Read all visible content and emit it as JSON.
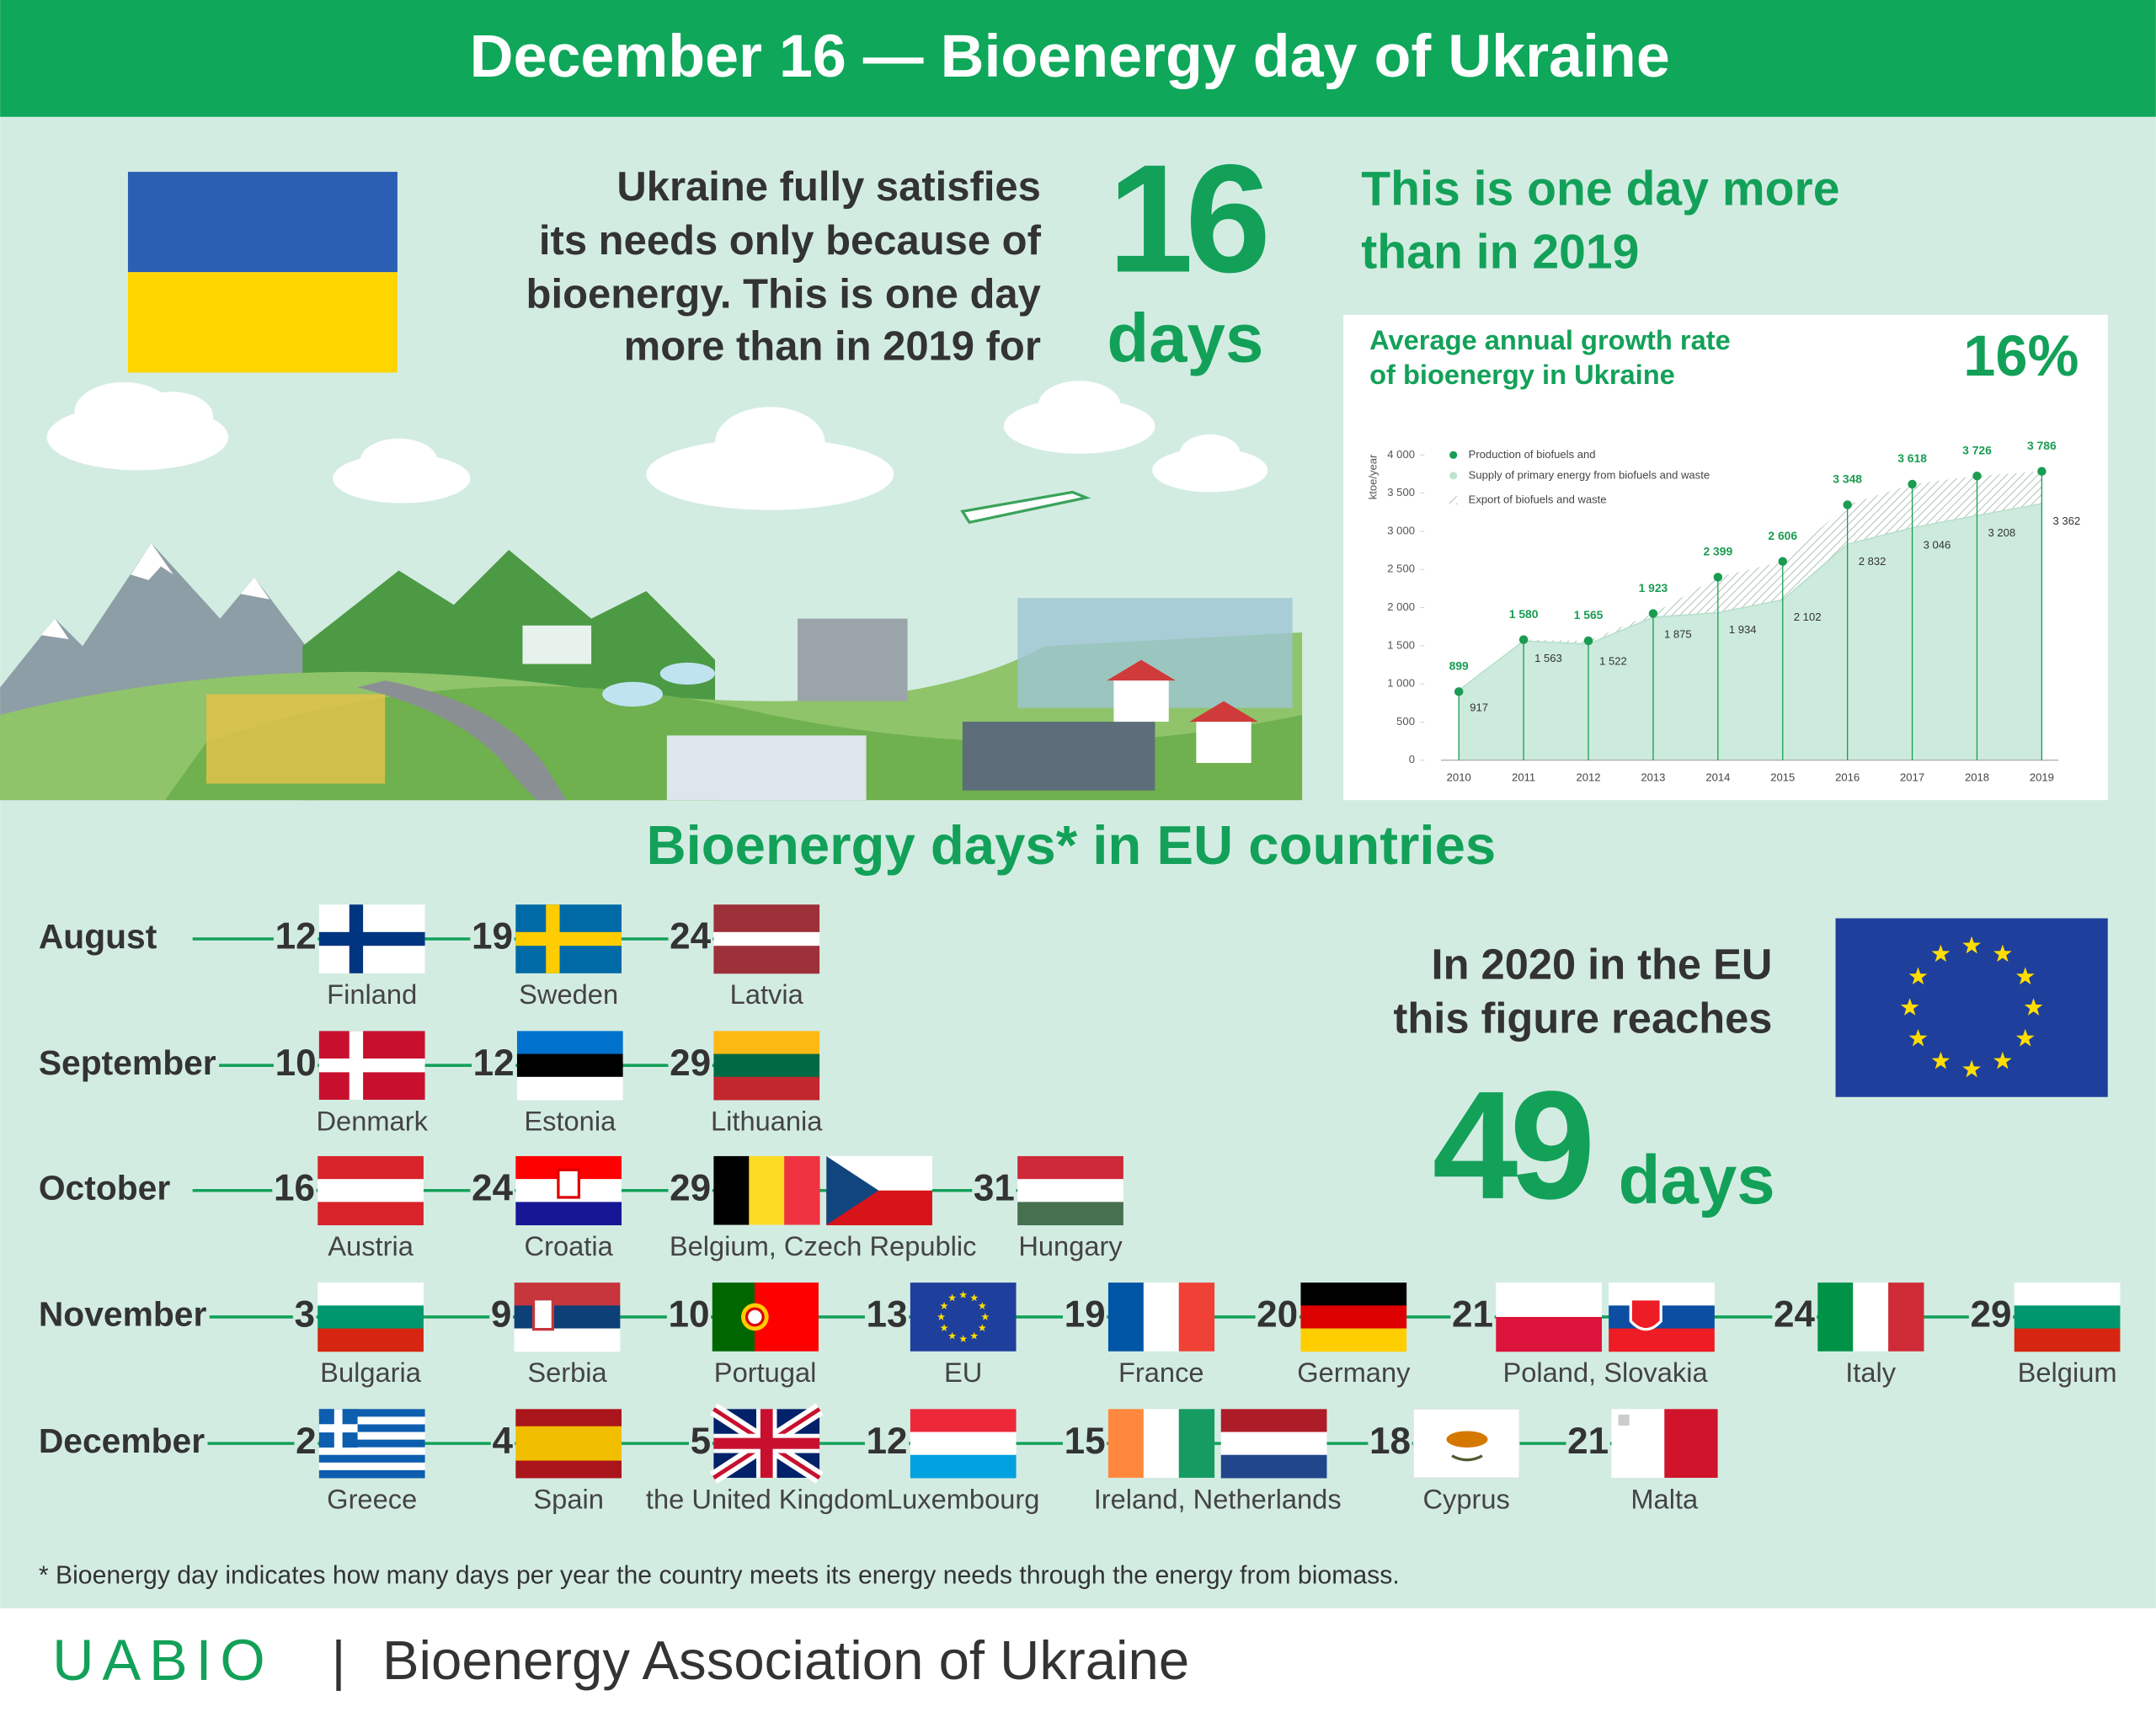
{
  "header": {
    "title": "December 16 — Bioenergy day of Ukraine"
  },
  "ukraine": {
    "text": [
      "Ukraine fully satisfies",
      "its needs only because of",
      "bioenergy. This is one day",
      "more than in 2019 for"
    ],
    "days": 16,
    "days_unit": "days",
    "note": [
      "This is one day more",
      "than in 2019"
    ]
  },
  "chart_data": {
    "type": "line",
    "title": [
      "Average annual growth rate",
      "of bioenergy in Ukraine"
    ],
    "growth_rate": {
      "value": 16,
      "label": "16%"
    },
    "ylabel": "ktoe/year",
    "categories": [
      "2010",
      "2011",
      "2012",
      "2013",
      "2014",
      "2015",
      "2016",
      "2017",
      "2018",
      "2019"
    ],
    "series": [
      {
        "name": "Production of biofuels and",
        "color": "#1a9c52",
        "values": [
          899,
          1580,
          1565,
          1923,
          2399,
          2606,
          3348,
          3618,
          3726,
          3786
        ],
        "value_labels": [
          "899",
          "1 580",
          "1 565",
          "1 923",
          "2 399",
          "2 606",
          "3 348",
          "3 618",
          "3 726",
          "3 786"
        ]
      },
      {
        "name": "Supply of primary energy from biofuels and waste",
        "color": "#cdebdd",
        "values": [
          917,
          1563,
          1522,
          1875,
          1934,
          2102,
          2832,
          3046,
          3208,
          3362
        ],
        "value_labels": [
          "917",
          "1 563",
          "1 522",
          "1 875",
          "1 934",
          "2 102",
          "2 832",
          "3 046",
          "3 208",
          "3 362"
        ]
      }
    ],
    "area_between_name": "Export of biofuels and waste",
    "ylim": [
      0,
      4000
    ],
    "yticks": [
      0,
      500,
      {
        "value": 1000,
        "label": "1 000"
      },
      {
        "value": 1500,
        "label": "1 500"
      },
      {
        "value": 2000,
        "label": "2 000"
      },
      {
        "value": 2500,
        "label": "2 500"
      },
      {
        "value": 3000,
        "label": "3 000"
      },
      {
        "value": 3500,
        "label": "3 500"
      },
      {
        "value": 4000,
        "label": "4 000"
      }
    ]
  },
  "eu": {
    "title": "Bioenergy days* in EU countries",
    "months": [
      {
        "name": "August",
        "entries": [
          {
            "day": 12,
            "countries": "Finland"
          },
          {
            "day": 19,
            "countries": "Sweden"
          },
          {
            "day": 24,
            "countries": "Latvia"
          }
        ]
      },
      {
        "name": "September",
        "entries": [
          {
            "day": 10,
            "countries": "Denmark"
          },
          {
            "day": 12,
            "countries": "Estonia"
          },
          {
            "day": 29,
            "countries": "Lithuania"
          }
        ]
      },
      {
        "name": "October",
        "entries": [
          {
            "day": 16,
            "countries": "Austria"
          },
          {
            "day": 24,
            "countries": "Croatia"
          },
          {
            "day": 29,
            "countries": "Belgium, Czech Republic"
          },
          {
            "day": 31,
            "countries": "Hungary"
          }
        ]
      },
      {
        "name": "November",
        "entries": [
          {
            "day": 3,
            "countries": "Bulgaria"
          },
          {
            "day": 9,
            "countries": "Serbia"
          },
          {
            "day": 10,
            "countries": "Portugal"
          },
          {
            "day": 13,
            "countries": "EU"
          },
          {
            "day": 19,
            "countries": "France"
          },
          {
            "day": 20,
            "countries": "Germany"
          },
          {
            "day": 21,
            "countries": "Poland, Slovakia"
          },
          {
            "day": 24,
            "countries": "Italy"
          },
          {
            "day": 29,
            "countries": "Belgium"
          }
        ]
      },
      {
        "name": "December",
        "entries": [
          {
            "day": 2,
            "countries": "Greece"
          },
          {
            "day": 4,
            "countries": "Spain"
          },
          {
            "day": 5,
            "countries": "the United Kingdom"
          },
          {
            "day": 12,
            "countries": "Luxembourg"
          },
          {
            "day": 15,
            "countries": "Ireland, Netherlands"
          },
          {
            "day": 18,
            "countries": "Cyprus"
          },
          {
            "day": 21,
            "countries": "Malta"
          }
        ]
      }
    ],
    "text": [
      "In 2020 in the EU",
      "this figure reaches"
    ],
    "days": 49,
    "days_unit": "days",
    "footnote": "* Bioenergy day indicates how many days per year the country meets its energy needs through the energy from biomass."
  },
  "footer": {
    "brand": "UABIO",
    "separator": "|",
    "name": "Bioenergy Association of Ukraine"
  }
}
